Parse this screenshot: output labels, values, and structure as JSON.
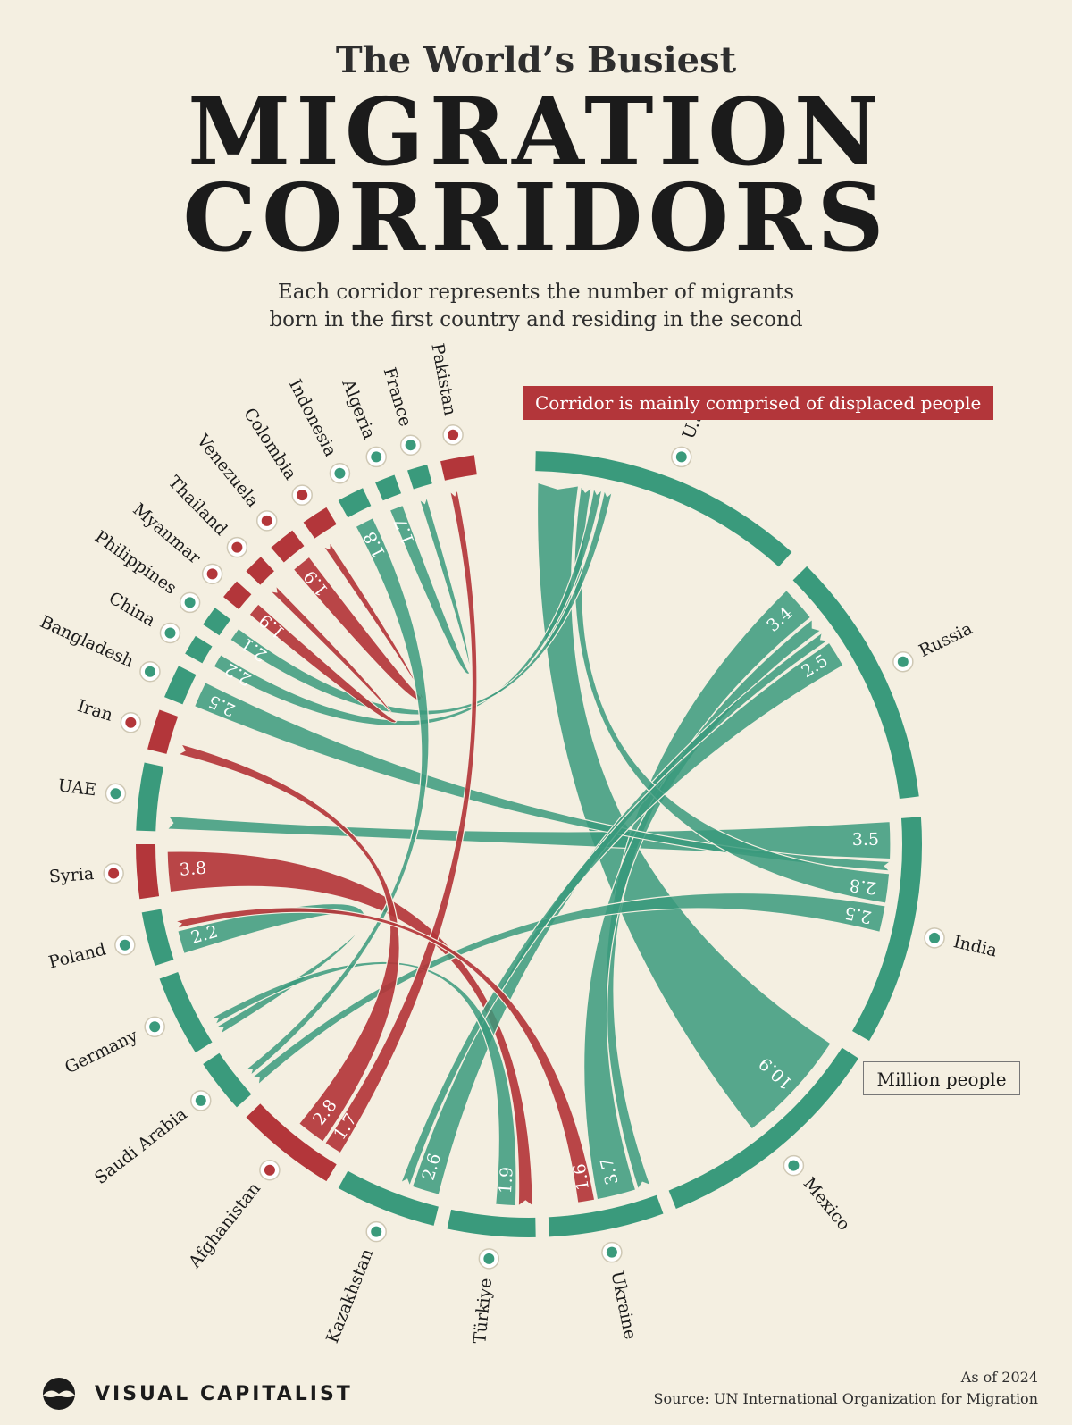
{
  "header": {
    "kicker": "The World’s Busiest",
    "title_line1": "MIGRATION",
    "title_line2": "CORRIDORS",
    "subtitle_line1": "Each corridor represents the number of migrants",
    "subtitle_line2": "born in the first country and residing in the second"
  },
  "legend": {
    "displaced_label": "Corridor is mainly comprised of displaced people",
    "unit_label": "Million people"
  },
  "colors": {
    "background": "#f4efe1",
    "migration": "#3a9a7c",
    "displaced": "#b3363a"
  },
  "countries": [
    "U.S.",
    "Russia",
    "India",
    "Mexico",
    "Ukraine",
    "Türkiye",
    "Kazakhstan",
    "Afghanistan",
    "Saudi Arabia",
    "Germany",
    "Poland",
    "Syria",
    "UAE",
    "Iran",
    "Bangladesh",
    "China",
    "Philippines",
    "Myanmar",
    "Thailand",
    "Venezuela",
    "Colombia",
    "Indonesia",
    "Algeria",
    "France",
    "Pakistan"
  ],
  "chart_data": {
    "type": "chord",
    "unit": "Million people",
    "corridors": [
      {
        "from": "Mexico",
        "to": "U.S.",
        "value": 10.9,
        "displaced": false
      },
      {
        "from": "Syria",
        "to": "Türkiye",
        "value": 3.8,
        "displaced": true
      },
      {
        "from": "India",
        "to": "UAE",
        "value": 3.5,
        "displaced": false
      },
      {
        "from": "Russia",
        "to": "Ukraine",
        "value": 3.4,
        "displaced": false
      },
      {
        "from": "Ukraine",
        "to": "Russia",
        "value": 3.7,
        "displaced": false
      },
      {
        "from": "Bangladesh",
        "to": "India",
        "value": 2.5,
        "displaced": false
      },
      {
        "from": "Kazakhstan",
        "to": "Russia",
        "value": 2.6,
        "displaced": false
      },
      {
        "from": "India",
        "to": "U.S.",
        "value": 2.8,
        "displaced": false
      },
      {
        "from": "India",
        "to": "Saudi Arabia",
        "value": 2.5,
        "displaced": false
      },
      {
        "from": "Russia",
        "to": "Kazakhstan",
        "value": 2.5,
        "displaced": false
      },
      {
        "from": "China",
        "to": "U.S.",
        "value": 2.2,
        "displaced": false
      },
      {
        "from": "Poland",
        "to": "Germany",
        "value": 2.2,
        "displaced": false
      },
      {
        "from": "Philippines",
        "to": "U.S.",
        "value": 2.1,
        "displaced": false
      },
      {
        "from": "Myanmar",
        "to": "Thailand",
        "value": 1.9,
        "displaced": true
      },
      {
        "from": "Venezuela",
        "to": "Colombia",
        "value": 1.9,
        "displaced": true
      },
      {
        "from": "Türkiye",
        "to": "Germany",
        "value": 1.9,
        "displaced": false
      },
      {
        "from": "Algeria",
        "to": "France",
        "value": 1.7,
        "displaced": false
      },
      {
        "from": "Afghanistan",
        "to": "Pakistan",
        "value": 1.7,
        "displaced": true
      },
      {
        "from": "Indonesia",
        "to": "Saudi Arabia",
        "value": 1.8,
        "displaced": false
      },
      {
        "from": "Afghanistan",
        "to": "Iran",
        "value": 2.8,
        "displaced": true
      },
      {
        "from": "Ukraine",
        "to": "Poland",
        "value": 1.6,
        "displaced": true
      }
    ]
  },
  "footer": {
    "brand": "VISUAL CAPITALIST",
    "as_of": "As of 2024",
    "source": "Source: UN International Organization for Migration"
  }
}
